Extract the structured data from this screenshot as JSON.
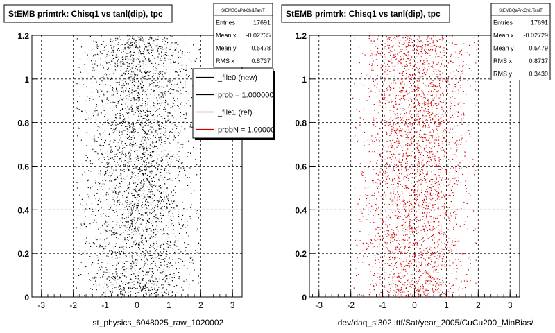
{
  "chart_data": [
    {
      "type": "scatter",
      "title": "StEMB primtrk: Chisq1 vs tanl(dip), tpc",
      "xlabel": "st_physics_6048025_raw_1020002",
      "ylabel": "",
      "xlim": [
        -3.3,
        3.3
      ],
      "ylim": [
        0,
        1.2
      ],
      "x_ticks": [
        "-3",
        "-2",
        "-1",
        "0",
        "1",
        "2",
        "3"
      ],
      "y_ticks": [
        "0",
        "0.2",
        "0.4",
        "0.6",
        "0.8",
        "1",
        "1.2"
      ],
      "grid": true,
      "marker_color": "#000000",
      "stats": {
        "name": "StEMBQaPrkChi1TanlT",
        "rows": [
          {
            "label": "Entries",
            "value": "17691"
          },
          {
            "label": "Mean x",
            "value": "-0.02735"
          },
          {
            "label": "Mean y",
            "value": "0.5478"
          },
          {
            "label": "RMS x",
            "value": "0.8737"
          }
        ]
      },
      "legend": {
        "placement": "top-right",
        "entries": [
          {
            "label": "_file0 (new)",
            "color": "#000000"
          },
          {
            "label": "prob = 1.000000",
            "color": "#000000"
          },
          {
            "label": "_file1 (ref)",
            "color": "#cc0000"
          },
          {
            "label": "probN = 1.000000",
            "color": "#cc0000"
          }
        ]
      },
      "distribution": {
        "x_center": 0,
        "x_spread": 0.8737,
        "x_range": [
          -1.95,
          1.95
        ],
        "y_range": [
          0,
          1.2
        ]
      }
    },
    {
      "type": "scatter",
      "title": "StEMB primtrk: Chisq1 vs tanl(dip), tpc",
      "xlabel": "dev/daq_sl302.ittf/Sat/year_2005/CuCu200_MinBias/",
      "ylabel": "",
      "xlim": [
        -3.3,
        3.3
      ],
      "ylim": [
        0,
        1.2
      ],
      "x_ticks": [
        "-3",
        "-2",
        "-1",
        "0",
        "1",
        "2",
        "3"
      ],
      "y_ticks": [
        "0",
        "0.2",
        "0.4",
        "0.6",
        "0.8",
        "1",
        "1.2"
      ],
      "grid": true,
      "marker_color": "#cc0000",
      "stats": {
        "name": "StEMBQaPrkChi1TanlT",
        "rows": [
          {
            "label": "Entries",
            "value": "17691"
          },
          {
            "label": "Mean x",
            "value": "-0.02729"
          },
          {
            "label": "Mean y",
            "value": "0.5479"
          },
          {
            "label": "RMS x",
            "value": "0.8737"
          },
          {
            "label": "RMS y",
            "value": "0.3439"
          }
        ]
      },
      "distribution": {
        "x_center": 0,
        "x_spread": 0.8737,
        "x_range": [
          -1.95,
          1.95
        ],
        "y_range": [
          0,
          1.2
        ]
      }
    }
  ]
}
